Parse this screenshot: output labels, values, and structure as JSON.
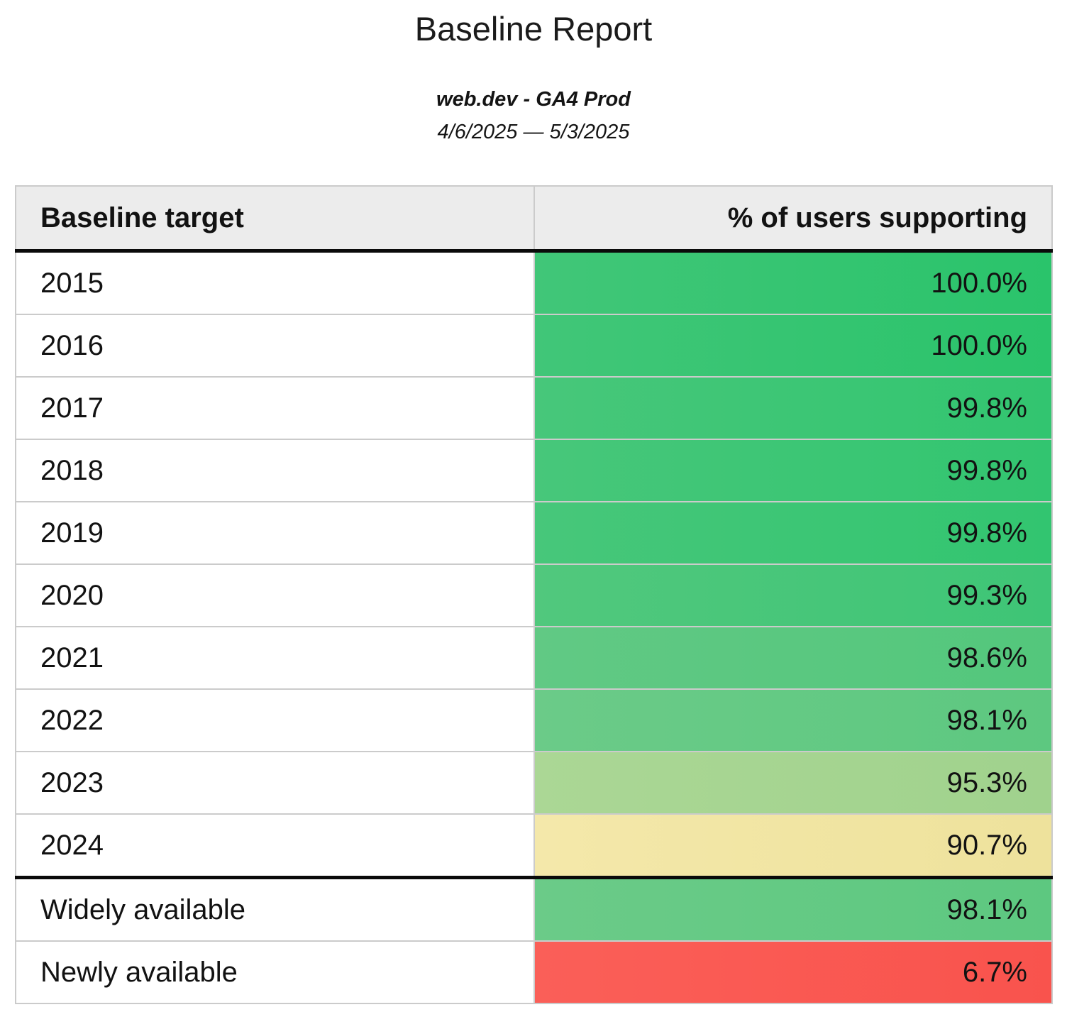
{
  "header": {
    "title": "Baseline Report",
    "subtitle": "web.dev - GA4 Prod",
    "date_range": "4/6/2025 — 5/3/2025"
  },
  "table": {
    "columns": {
      "target": "Baseline target",
      "support": "% of users supporting"
    },
    "rows": [
      {
        "label": "2015",
        "value": "100.0%",
        "bg_left": "#41c678",
        "bg_right": "#2ac46b"
      },
      {
        "label": "2016",
        "value": "100.0%",
        "bg_left": "#41c678",
        "bg_right": "#2ac46b"
      },
      {
        "label": "2017",
        "value": "99.8%",
        "bg_left": "#47c77a",
        "bg_right": "#32c570"
      },
      {
        "label": "2018",
        "value": "99.8%",
        "bg_left": "#47c77a",
        "bg_right": "#32c570"
      },
      {
        "label": "2019",
        "value": "99.8%",
        "bg_left": "#47c77a",
        "bg_right": "#32c570"
      },
      {
        "label": "2020",
        "value": "99.3%",
        "bg_left": "#51c87d",
        "bg_right": "#3ec576"
      },
      {
        "label": "2021",
        "value": "98.6%",
        "bg_left": "#61c984",
        "bg_right": "#53c77c"
      },
      {
        "label": "2022",
        "value": "98.1%",
        "bg_left": "#6bcb88",
        "bg_right": "#5dc880"
      },
      {
        "label": "2023",
        "value": "95.3%",
        "bg_left": "#abd795",
        "bg_right": "#a0d28d"
      },
      {
        "label": "2024",
        "value": "90.7%",
        "bg_left": "#f4e8aa",
        "bg_right": "#eee29c"
      },
      {
        "label": "Widely available",
        "value": "98.1%",
        "bg_left": "#6bcb88",
        "bg_right": "#5dc880"
      },
      {
        "label": "Newly available",
        "value": "6.7%",
        "bg_left": "#fa5f58",
        "bg_right": "#f9534d"
      }
    ]
  },
  "colors": {
    "header_background": "#ececec",
    "grid_border": "#cbcbcb",
    "heavy_rule": "#0a0a0a",
    "good_green": "#2ac46b",
    "mid_green": "#5dc880",
    "light_green": "#a0d28d",
    "warn_yellow": "#eee29c",
    "bad_red": "#f9534d"
  },
  "chart_data": {
    "type": "table",
    "title": "Baseline Report",
    "subtitle": "web.dev - GA4 Prod",
    "date_range": "4/6/2025 — 5/3/2025",
    "columns": [
      "Baseline target",
      "% of users supporting"
    ],
    "categories": [
      "2015",
      "2016",
      "2017",
      "2018",
      "2019",
      "2020",
      "2021",
      "2022",
      "2023",
      "2024",
      "Widely available",
      "Newly available"
    ],
    "values": [
      100.0,
      100.0,
      99.8,
      99.8,
      99.8,
      99.3,
      98.6,
      98.1,
      95.3,
      90.7,
      98.1,
      6.7
    ],
    "value_unit": "%",
    "cell_colors": [
      "#2ac46b",
      "#2ac46b",
      "#32c570",
      "#32c570",
      "#32c570",
      "#3ec576",
      "#53c77c",
      "#5dc880",
      "#a0d28d",
      "#eee29c",
      "#5dc880",
      "#f9534d"
    ],
    "layout": "two-column data table with heatmap-colored value cells; heavy rule separates yearly targets from availability summary rows"
  }
}
